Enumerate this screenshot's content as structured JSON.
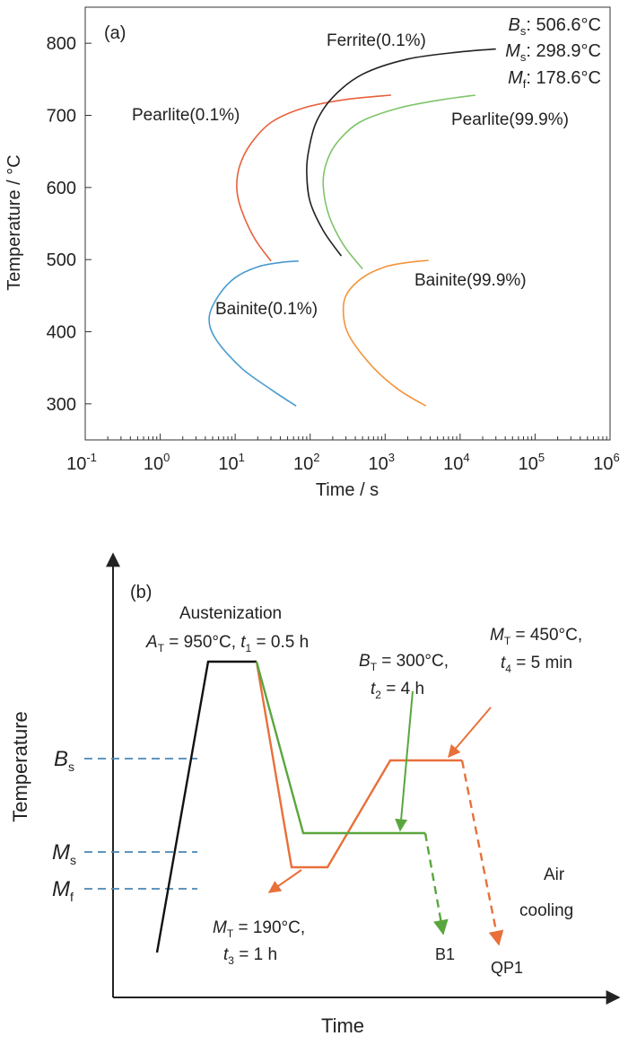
{
  "chart_data": [
    {
      "type": "line",
      "panel_label": "(a)",
      "xlabel": "Time / s",
      "ylabel": "Temperature / °C",
      "x_scale": "log",
      "xlim": [
        0.1,
        1000000
      ],
      "ylim": [
        250,
        850
      ],
      "y_ticks": [
        300,
        400,
        500,
        600,
        700,
        800
      ],
      "x_tick_labels": [
        "10-1",
        "100",
        "101",
        "102",
        "103",
        "104",
        "105",
        "106"
      ],
      "x_tick_bases": [
        "10",
        "10",
        "10",
        "10",
        "10",
        "10",
        "10",
        "10"
      ],
      "x_tick_exponents": [
        "-1",
        "0",
        "1",
        "2",
        "3",
        "4",
        "5",
        "6"
      ],
      "transformation_temps": [
        {
          "symbol": "B",
          "sub": "s",
          "text": ": 506.6°C"
        },
        {
          "symbol": "M",
          "sub": "s",
          "text": ": 298.9°C"
        },
        {
          "symbol": "M",
          "sub": "f",
          "text": ": 178.6°C"
        }
      ],
      "series": [
        {
          "name": "Pearlite(0.1%)",
          "color": "#e8603c",
          "points": [
            [
              30,
              498
            ],
            [
              18,
              530
            ],
            [
              12,
              570
            ],
            [
              10.5,
              600
            ],
            [
              11.5,
              630
            ],
            [
              16,
              660
            ],
            [
              30,
              690
            ],
            [
              80,
              710
            ],
            [
              300,
              722
            ],
            [
              1200,
              728
            ]
          ]
        },
        {
          "name": "Ferrite(0.1%)",
          "color": "#222222",
          "points": [
            [
              260,
              505
            ],
            [
              150,
              540
            ],
            [
              100,
              580
            ],
            [
              90,
              620
            ],
            [
              95,
              650
            ],
            [
              120,
              690
            ],
            [
              200,
              725
            ],
            [
              500,
              757
            ],
            [
              2000,
              778
            ],
            [
              10000,
              788
            ],
            [
              30000,
              792
            ]
          ]
        },
        {
          "name": "Pearlite(99.9%)",
          "color": "#7fc46a",
          "points": [
            [
              500,
              487
            ],
            [
              280,
              520
            ],
            [
              180,
              560
            ],
            [
              150,
              600
            ],
            [
              160,
              630
            ],
            [
              220,
              660
            ],
            [
              450,
              690
            ],
            [
              1500,
              710
            ],
            [
              6000,
              722
            ],
            [
              16000,
              728
            ]
          ]
        },
        {
          "name": "Bainite(0.1%)",
          "color": "#4a9ad0",
          "points": [
            [
              65,
              297
            ],
            [
              30,
              320
            ],
            [
              12,
              350
            ],
            [
              5.5,
              390
            ],
            [
              4.5,
              420
            ],
            [
              6,
              450
            ],
            [
              10,
              475
            ],
            [
              20,
              490
            ],
            [
              40,
              496
            ],
            [
              70,
              498
            ]
          ]
        },
        {
          "name": "Bainite(99.9%)",
          "color": "#f2953c",
          "points": [
            [
              3500,
              297
            ],
            [
              1500,
              320
            ],
            [
              700,
              350
            ],
            [
              350,
              390
            ],
            [
              280,
              420
            ],
            [
              300,
              450
            ],
            [
              500,
              475
            ],
            [
              1000,
              490
            ],
            [
              2000,
              496
            ],
            [
              3800,
              499
            ]
          ]
        }
      ]
    },
    {
      "type": "diagram",
      "panel_label": "(b)",
      "xlabel": "Time",
      "ylabel": "Temperature",
      "levels": [
        {
          "symbol": "B",
          "sub": "s"
        },
        {
          "symbol": "M",
          "sub": "s"
        },
        {
          "symbol": "M",
          "sub": "f"
        }
      ],
      "austenization": {
        "title": "Austenization",
        "params": [
          {
            "sym": "A",
            "sub": "T",
            "val": " = 950°C, "
          },
          {
            "sym": "t",
            "sub": "1",
            "val": " = 0.5 h"
          }
        ]
      },
      "bainite_step": {
        "line1": {
          "sym": "B",
          "sub": "T",
          "val": " = 300°C,"
        },
        "line2": {
          "sym": "t",
          "sub": "2",
          "val": " = 4 h"
        }
      },
      "quench_step": {
        "line1": {
          "sym": "M",
          "sub": "T",
          "val": " = 190°C,"
        },
        "line2": {
          "sym": "t",
          "sub": "3",
          "val": " = 1 h"
        }
      },
      "partition_step": {
        "line1": {
          "sym": "M",
          "sub": "T",
          "val": " = 450°C,"
        },
        "line2": {
          "sym": "t",
          "sub": "4",
          "val": " = 5 min"
        }
      },
      "air_cooling": [
        "Air",
        "cooling"
      ],
      "routes": [
        {
          "name": "B1",
          "color": "#5aa63e"
        },
        {
          "name": "QP1",
          "color": "#e8703a"
        }
      ],
      "heating_color": "#111111",
      "level_color": "#4a86b5"
    }
  ]
}
